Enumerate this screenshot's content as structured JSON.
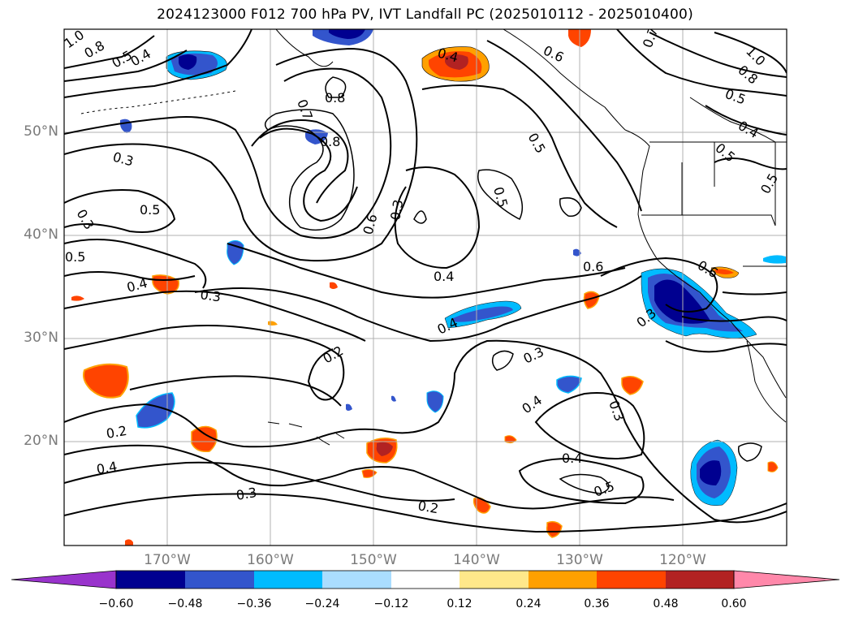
{
  "title": "2024123000 F012 700 hPa PV, IVT Landfall PC (2025010112 - 2025010400)",
  "lat_labels": [
    "50°N",
    "40°N",
    "30°N",
    "20°N"
  ],
  "lon_labels": [
    "170°W",
    "160°W",
    "150°W",
    "140°W",
    "130°W",
    "120°W"
  ],
  "contour_labels": [
    "1.0",
    "0.8",
    "0.5",
    "0.4",
    "0.4",
    "0.7",
    "0.8",
    "0.8",
    "0.6",
    "0.7",
    "1.0",
    "0.8",
    "0.5",
    "0.4",
    "0.5",
    "0.5",
    "0.3",
    "0.3",
    "0.5",
    "0.5",
    "0.6",
    "0.3",
    "0.5",
    "0.4",
    "0.4",
    "0.3",
    "0.6",
    "0.3",
    "0.2",
    "0.3",
    "0.4",
    "0.3",
    "0.2",
    "0.4",
    "0.4",
    "0.3",
    "0.2",
    "0.5",
    "0.6",
    "0.5",
    "0.4"
  ],
  "colorbar": {
    "ticks": [
      "−0.60",
      "−0.48",
      "−0.36",
      "−0.24",
      "−0.12",
      "0.12",
      "0.24",
      "0.36",
      "0.48",
      "0.60"
    ],
    "colors": [
      "#9933cc",
      "#000090",
      "#3355cc",
      "#00bbff",
      "#aaddff",
      "#ffffff",
      "#ffe88a",
      "#ffa000",
      "#ff4400",
      "#b22222",
      "#ff88aa"
    ]
  },
  "chart_data": {
    "type": "map",
    "field": "700 hPa PV contours with IVT Landfall PC shading",
    "lat_range": [
      "10°N",
      "60°N"
    ],
    "lon_range": [
      "180°W",
      "110°W"
    ]
  }
}
